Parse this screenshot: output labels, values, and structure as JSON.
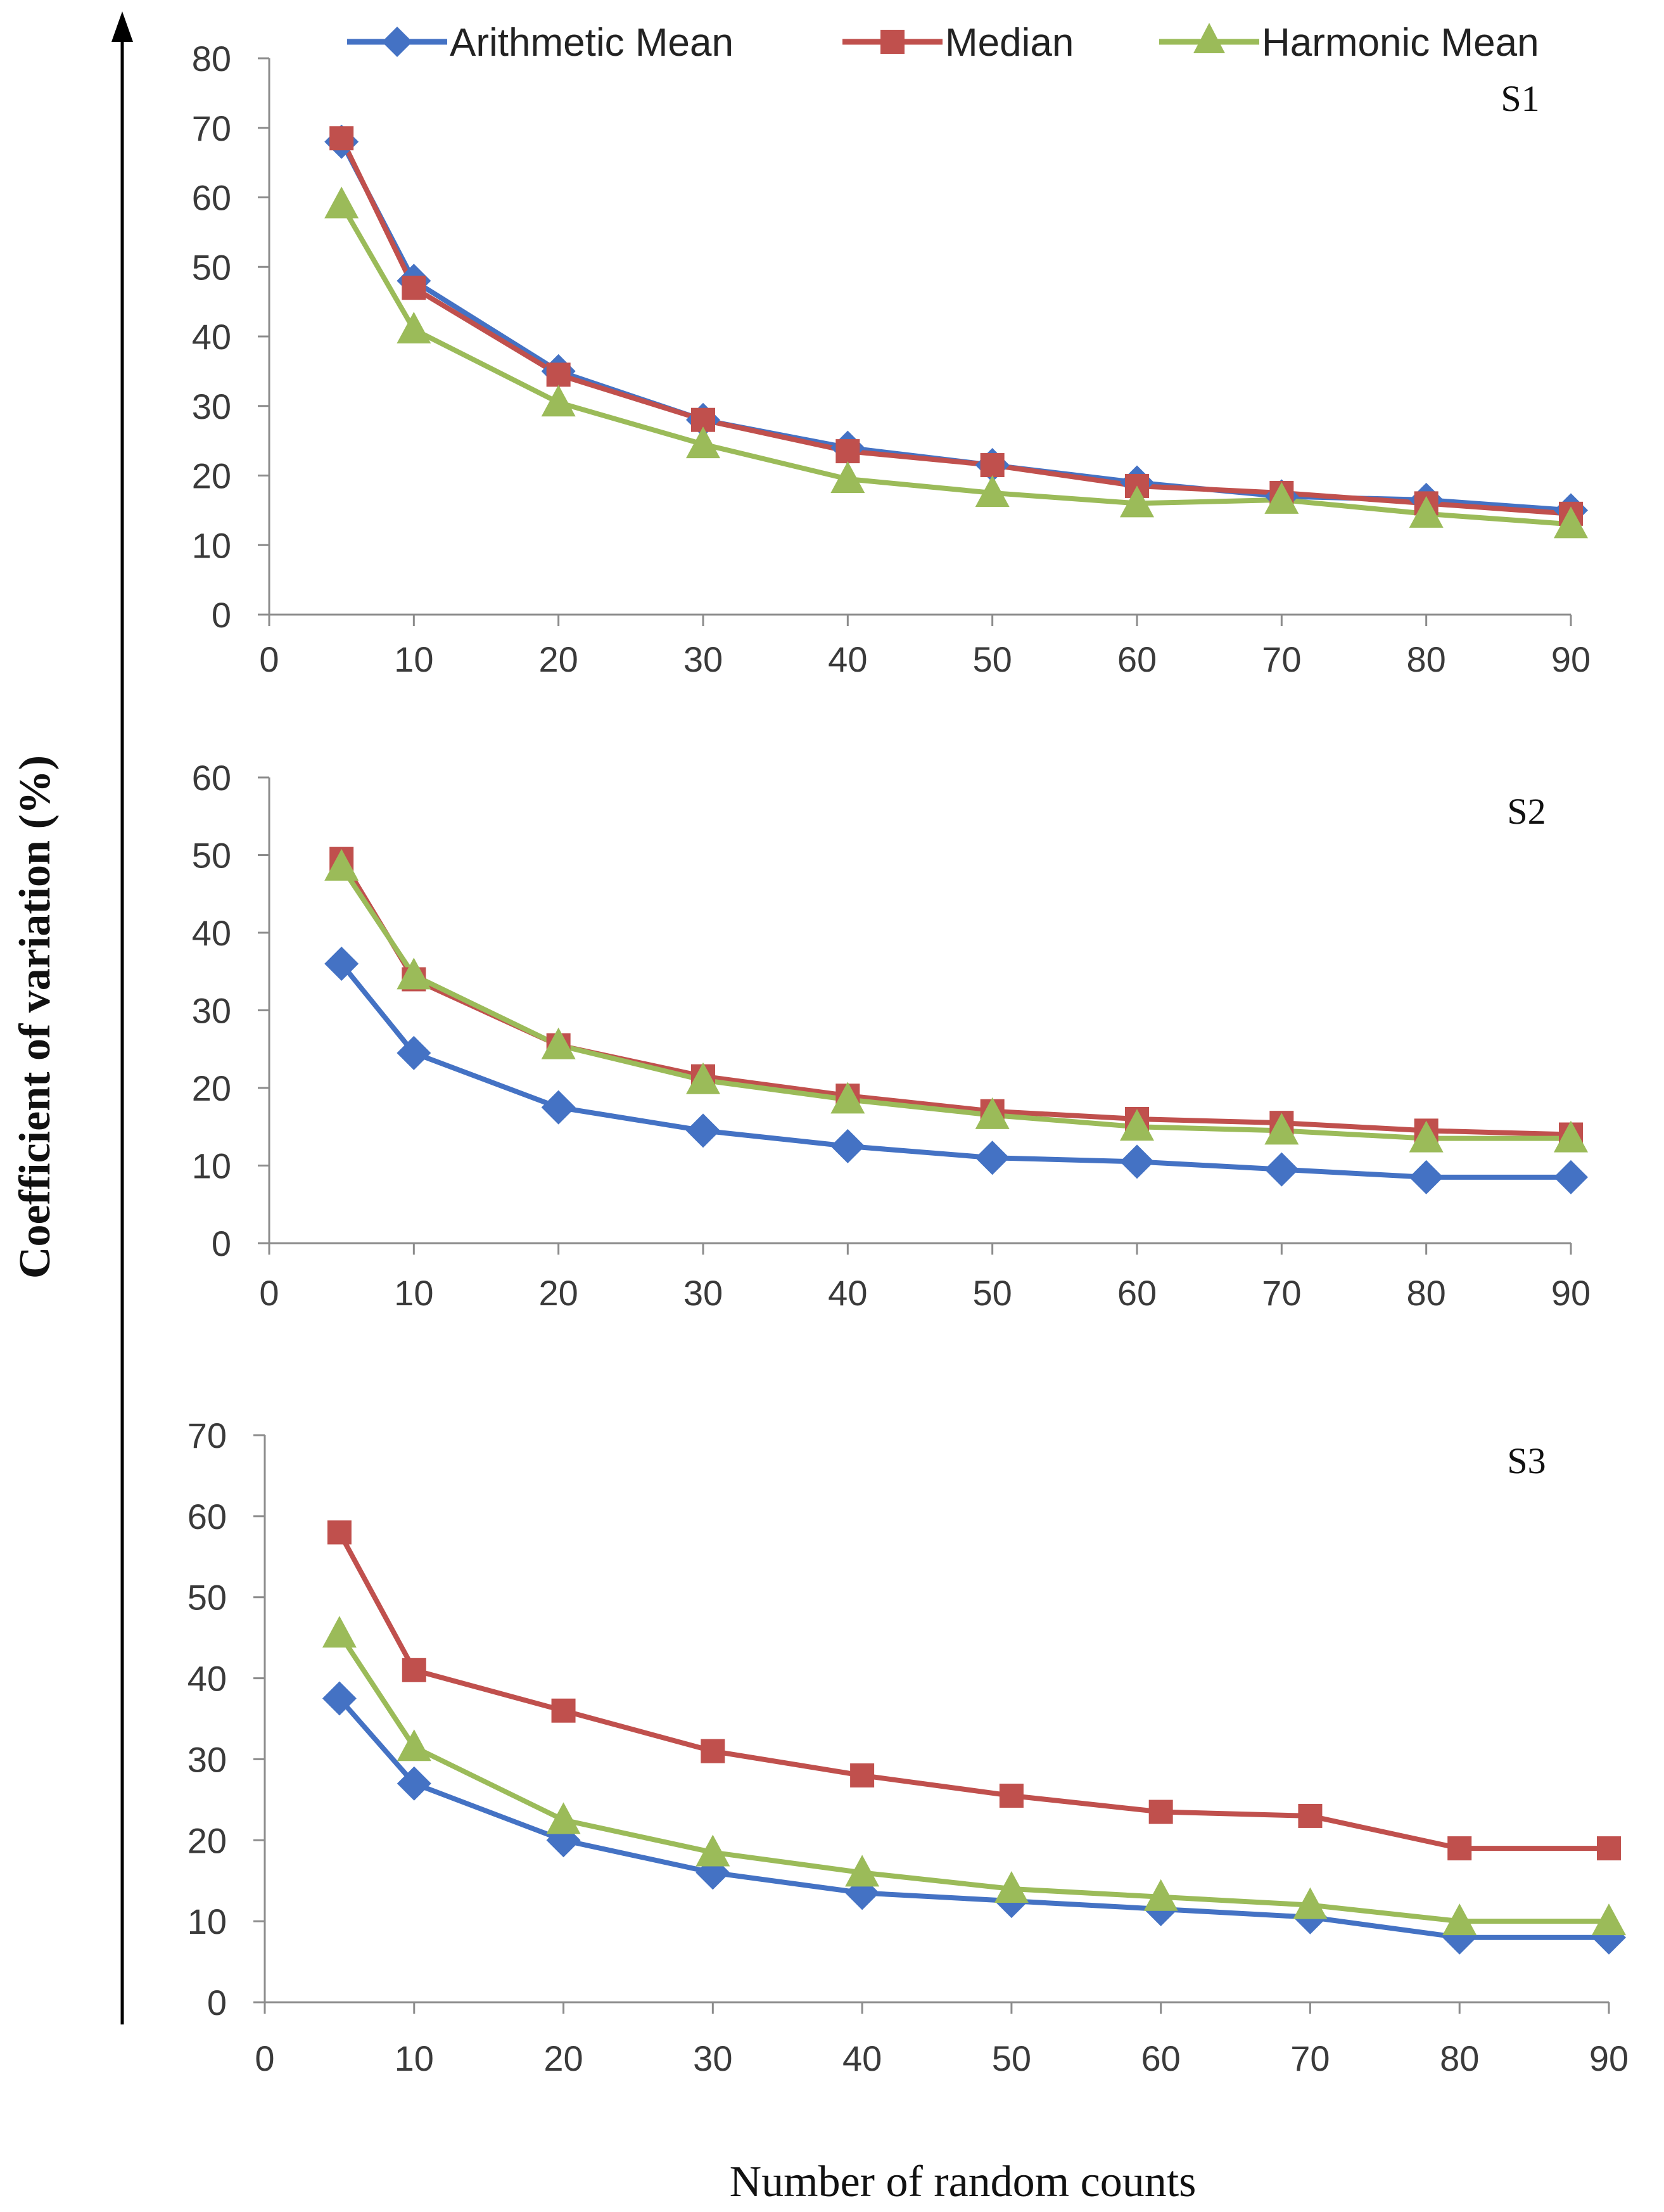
{
  "ylabel": "Coefficient of variation (%)",
  "xlabel": "Number of random counts",
  "legend": [
    {
      "name": "Arithmetic Mean",
      "color": "#4472C4",
      "marker": "diamond"
    },
    {
      "name": "Median",
      "color": "#C0504D",
      "marker": "square"
    },
    {
      "name": "Harmonic Mean",
      "color": "#9BBB59",
      "marker": "triangle"
    }
  ],
  "chart_data": [
    {
      "type": "line",
      "panel": "S1",
      "x": [
        5,
        10,
        20,
        30,
        40,
        50,
        60,
        70,
        80,
        90
      ],
      "xticks": [
        0,
        10,
        20,
        30,
        40,
        50,
        60,
        70,
        80,
        90
      ],
      "xlim": [
        0,
        90
      ],
      "ylim": [
        0,
        80
      ],
      "yticks": [
        0,
        10,
        20,
        30,
        40,
        50,
        60,
        70,
        80
      ],
      "series": [
        {
          "name": "Arithmetic Mean",
          "values": [
            68,
            48,
            35,
            28,
            24,
            21.5,
            19,
            17,
            16.5,
            15
          ]
        },
        {
          "name": "Median",
          "values": [
            68.5,
            47,
            34.5,
            28,
            23.5,
            21.5,
            18.5,
            17.5,
            16,
            14.5
          ]
        },
        {
          "name": "Harmonic Mean",
          "values": [
            59,
            41,
            30.5,
            24.5,
            19.5,
            17.5,
            16,
            16.5,
            14.5,
            13
          ]
        }
      ]
    },
    {
      "type": "line",
      "panel": "S2",
      "x": [
        5,
        10,
        20,
        30,
        40,
        50,
        60,
        70,
        80,
        90
      ],
      "xticks": [
        0,
        10,
        20,
        30,
        40,
        50,
        60,
        70,
        80,
        90
      ],
      "xlim": [
        0,
        90
      ],
      "ylim": [
        0,
        60
      ],
      "yticks": [
        0,
        10,
        20,
        30,
        40,
        50,
        60
      ],
      "series": [
        {
          "name": "Arithmetic Mean",
          "values": [
            36,
            24.5,
            17.5,
            14.5,
            12.5,
            11,
            10.5,
            9.5,
            8.5,
            8.5
          ]
        },
        {
          "name": "Median",
          "values": [
            49.5,
            34,
            25.5,
            21.5,
            19,
            17,
            16,
            15.5,
            14.5,
            14
          ]
        },
        {
          "name": "Harmonic Mean",
          "values": [
            48.5,
            34.5,
            25.5,
            21,
            18.5,
            16.5,
            15,
            14.5,
            13.5,
            13.5
          ]
        }
      ]
    },
    {
      "type": "line",
      "panel": "S3",
      "x": [
        5,
        10,
        20,
        30,
        40,
        50,
        60,
        70,
        80,
        90
      ],
      "xticks": [
        0,
        10,
        20,
        30,
        40,
        50,
        60,
        70,
        80,
        90
      ],
      "xlim": [
        0,
        90
      ],
      "ylim": [
        0,
        70
      ],
      "yticks": [
        0,
        10,
        20,
        30,
        40,
        50,
        60,
        70
      ],
      "series": [
        {
          "name": "Arithmetic Mean",
          "values": [
            37.5,
            27,
            20,
            16,
            13.5,
            12.5,
            11.5,
            10.5,
            8,
            8
          ]
        },
        {
          "name": "Median",
          "values": [
            58,
            41,
            36,
            31,
            28,
            25.5,
            23.5,
            23,
            19,
            19
          ]
        },
        {
          "name": "Harmonic Mean",
          "values": [
            45.5,
            31.5,
            22.5,
            18.5,
            16,
            14,
            13,
            12,
            10,
            10
          ]
        }
      ]
    }
  ]
}
